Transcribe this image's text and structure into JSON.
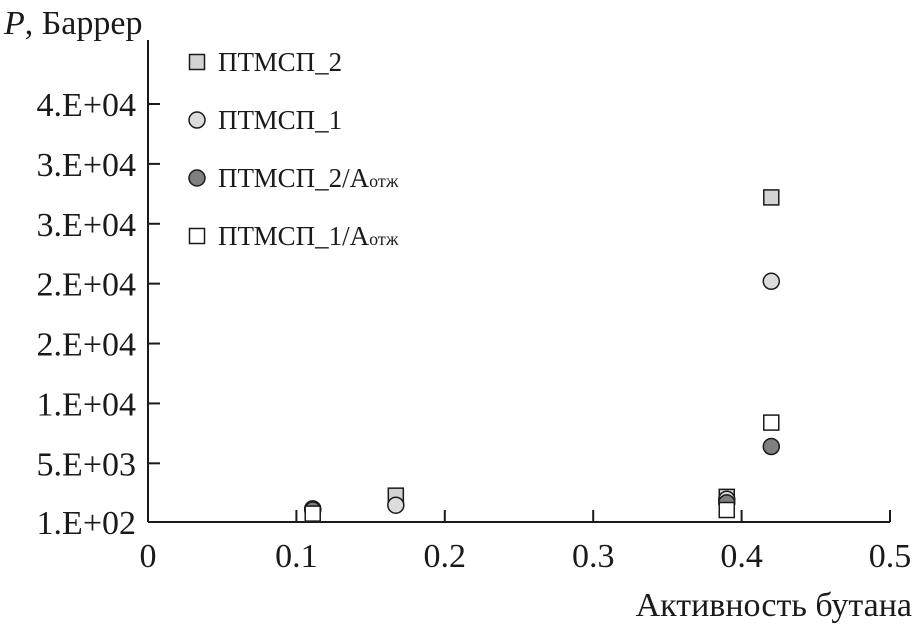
{
  "chart_data": {
    "type": "scatter",
    "ylabel_italic": "P",
    "ylabel_rest": ", Баррер",
    "xlabel": "Активность бутана",
    "xlim": [
      0,
      0.5
    ],
    "ylim": [
      100,
      35000
    ],
    "x_ticks": [
      {
        "value": 0,
        "label": "0"
      },
      {
        "value": 0.1,
        "label": "0.1"
      },
      {
        "value": 0.2,
        "label": "0.2"
      },
      {
        "value": 0.3,
        "label": "0.3"
      },
      {
        "value": 0.4,
        "label": "0.4"
      },
      {
        "value": 0.5,
        "label": "0.5"
      }
    ],
    "y_ticks": [
      {
        "value": 100,
        "label": "1.E+02"
      },
      {
        "value": 5000,
        "label": "5.E+03"
      },
      {
        "value": 10000,
        "label": "1.E+04"
      },
      {
        "value": 15000,
        "label": "2.E+04"
      },
      {
        "value": 20000,
        "label": "2.E+04"
      },
      {
        "value": 25000,
        "label": "3.E+04"
      },
      {
        "value": 30000,
        "label": "3.E+04"
      },
      {
        "value": 35000,
        "label": "4.E+04"
      }
    ],
    "grid": false,
    "legend_position": "top-left",
    "series": [
      {
        "name": "ПТМСП_2",
        "name_sub": "",
        "marker": "square",
        "fill": "#d3d3d3",
        "points": [
          {
            "x": 0.167,
            "y": 2300
          },
          {
            "x": 0.39,
            "y": 2200
          },
          {
            "x": 0.42,
            "y": 27200
          }
        ]
      },
      {
        "name": "ПТМСП_1",
        "name_sub": "",
        "marker": "circle",
        "fill": "#dcdcdc",
        "points": [
          {
            "x": 0.111,
            "y": 1200
          },
          {
            "x": 0.167,
            "y": 1500
          },
          {
            "x": 0.39,
            "y": 2000
          },
          {
            "x": 0.42,
            "y": 20200
          }
        ]
      },
      {
        "name": "ПТМСП_2/А",
        "name_sub": "отж",
        "marker": "circle",
        "fill": "#7f7f7f",
        "points": [
          {
            "x": 0.111,
            "y": 1100
          },
          {
            "x": 0.39,
            "y": 1700
          },
          {
            "x": 0.42,
            "y": 6400
          }
        ]
      },
      {
        "name": "ПТМСП_1/А",
        "name_sub": "отж",
        "marker": "square",
        "fill": "#ffffff",
        "points": [
          {
            "x": 0.111,
            "y": 800
          },
          {
            "x": 0.39,
            "y": 1100
          },
          {
            "x": 0.42,
            "y": 8400
          }
        ]
      }
    ]
  }
}
